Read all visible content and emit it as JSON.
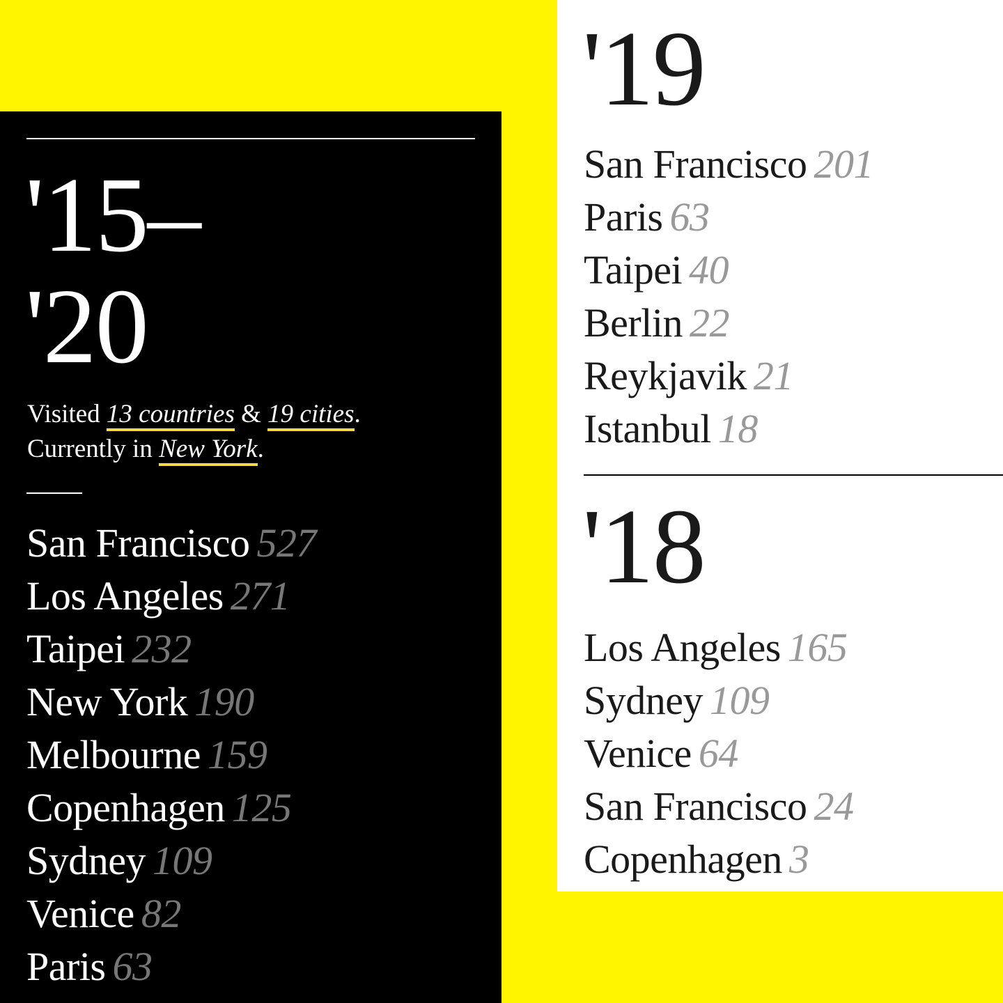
{
  "summary_panel": {
    "years_line1": "'15–",
    "years_line2": "'20",
    "visited_prefix": "Visited ",
    "countries_link": "13 countries",
    "amp": " & ",
    "cities_link": "19 cities",
    "period1": ".",
    "current_prefix": "Currently in ",
    "current_city_link": "New York",
    "period2": ".",
    "cities": [
      {
        "name": "San Francisco",
        "count": "527"
      },
      {
        "name": "Los Angeles",
        "count": "271"
      },
      {
        "name": "Taipei",
        "count": "232"
      },
      {
        "name": "New York",
        "count": "190"
      },
      {
        "name": "Melbourne",
        "count": "159"
      },
      {
        "name": "Copenhagen",
        "count": "125"
      },
      {
        "name": "Sydney",
        "count": "109"
      },
      {
        "name": "Venice",
        "count": "82"
      },
      {
        "name": "Paris",
        "count": "63"
      }
    ]
  },
  "year_2019": {
    "year": "'19",
    "cities": [
      {
        "name": "San Francisco",
        "count": "201"
      },
      {
        "name": "Paris",
        "count": "63"
      },
      {
        "name": "Taipei",
        "count": "40"
      },
      {
        "name": "Berlin",
        "count": "22"
      },
      {
        "name": "Reykjavik",
        "count": "21"
      },
      {
        "name": "Istanbul",
        "count": "18"
      }
    ]
  },
  "year_2018": {
    "year": "'18",
    "cities": [
      {
        "name": "Los Angeles",
        "count": "165"
      },
      {
        "name": "Sydney",
        "count": "109"
      },
      {
        "name": "Venice",
        "count": "64"
      },
      {
        "name": "San Francisco",
        "count": "24"
      },
      {
        "name": "Copenhagen",
        "count": "3"
      }
    ]
  },
  "colors": {
    "background": "#fff500",
    "panel_dark": "#000000",
    "panel_light": "#ffffff",
    "link_underline": "#f5d94a",
    "count_dark": "#777777",
    "count_light": "#999999"
  }
}
